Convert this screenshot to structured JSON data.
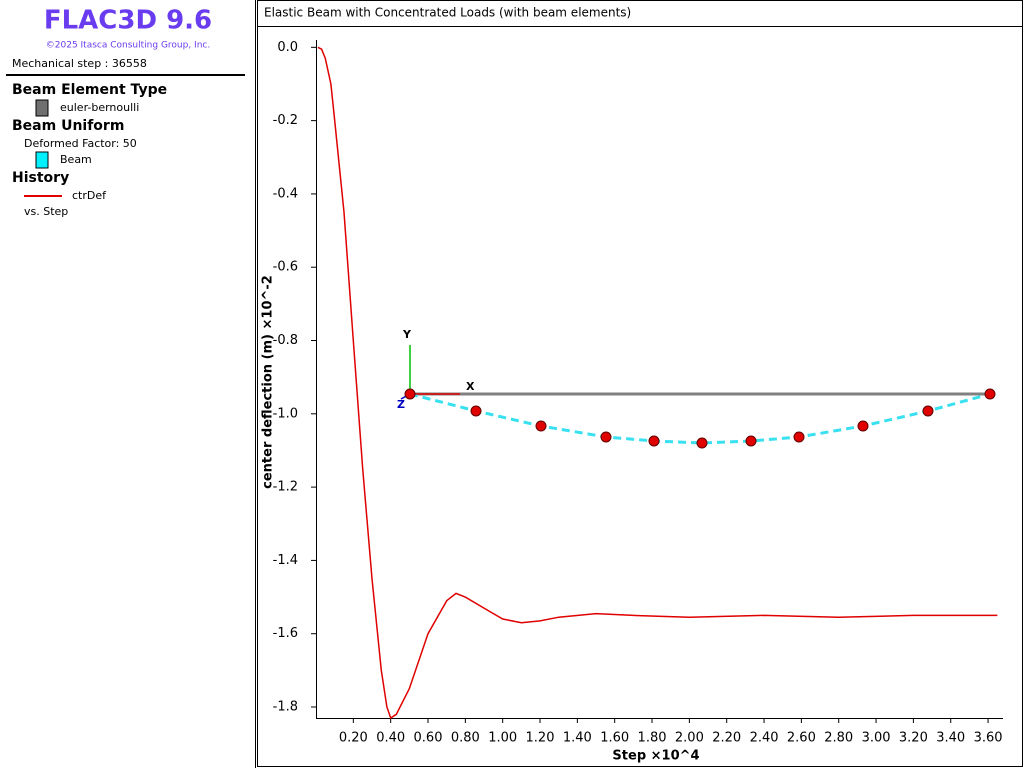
{
  "legend_panel": {
    "app_title": "FLAC3D 9.6",
    "copyright": "©2025 Itasca Consulting Group, Inc.",
    "step_info": "Mechanical step : 36558",
    "sections": [
      {
        "title": "Beam Element Type",
        "items": [
          "euler-bernoulli"
        ]
      },
      {
        "title": "Beam Uniform",
        "subtitle": "Deformed Factor: 50",
        "items": [
          "Beam"
        ]
      },
      {
        "title": "History",
        "note": "vs. Step"
      }
    ]
  },
  "model_view": {
    "axis_labels": [
      "X",
      "Y",
      "Z"
    ]
  },
  "chart_data": {
    "type": "line",
    "title": "Elastic Beam with Concentrated Loads (with beam elements)",
    "x_label": "Step ×10^4",
    "y_label": "center deflection (m) ×10^-2",
    "x": [
      0.01,
      0.03,
      0.05,
      0.08,
      0.1,
      0.15,
      0.2,
      0.25,
      0.3,
      0.35,
      0.38,
      0.4,
      0.43,
      0.5,
      0.6,
      0.7,
      0.75,
      0.8,
      0.9,
      1.0,
      1.1,
      1.2,
      1.3,
      1.5,
      1.7,
      2.0,
      2.4,
      2.8,
      3.2,
      3.65
    ],
    "series": [
      {
        "name": "ctrDef",
        "color": "#e00000",
        "values": [
          0.0,
          -0.005,
          -0.03,
          -0.1,
          -0.2,
          -0.45,
          -0.8,
          -1.15,
          -1.45,
          -1.7,
          -1.8,
          -1.83,
          -1.82,
          -1.75,
          -1.6,
          -1.51,
          -1.49,
          -1.5,
          -1.53,
          -1.56,
          -1.57,
          -1.565,
          -1.555,
          -1.545,
          -1.55,
          -1.555,
          -1.55,
          -1.555,
          -1.55,
          -1.55
        ]
      }
    ],
    "xlim": [
      0,
      3.68
    ],
    "ylim": [
      -1.83,
      0.02
    ],
    "xticks": [
      {
        "value": 0.2,
        "label": "0.20"
      },
      {
        "value": 0.4,
        "label": "0.40"
      },
      {
        "value": 0.6,
        "label": "0.60"
      },
      {
        "value": 0.8,
        "label": "0.80"
      },
      {
        "value": 1.0,
        "label": "1.00"
      },
      {
        "value": 1.2,
        "label": "1.20"
      },
      {
        "value": 1.4,
        "label": "1.40"
      },
      {
        "value": 1.6,
        "label": "1.60"
      },
      {
        "value": 1.8,
        "label": "1.80"
      },
      {
        "value": 2.0,
        "label": "2.00"
      },
      {
        "value": 2.2,
        "label": "2.20"
      },
      {
        "value": 2.4,
        "label": "2.40"
      },
      {
        "value": 2.6,
        "label": "2.60"
      },
      {
        "value": 2.8,
        "label": "2.80"
      },
      {
        "value": 3.0,
        "label": "3.00"
      },
      {
        "value": 3.2,
        "label": "3.20"
      },
      {
        "value": 3.4,
        "label": "3.40"
      },
      {
        "value": 3.6,
        "label": "3.60"
      }
    ],
    "yticks": [
      {
        "value": 0,
        "label": "0.0"
      },
      -0.2,
      -0.4,
      -0.6,
      -0.8,
      {
        "value": -1,
        "label": "-1.0"
      },
      -1.2,
      -1.4,
      -1.6,
      -1.8
    ]
  }
}
